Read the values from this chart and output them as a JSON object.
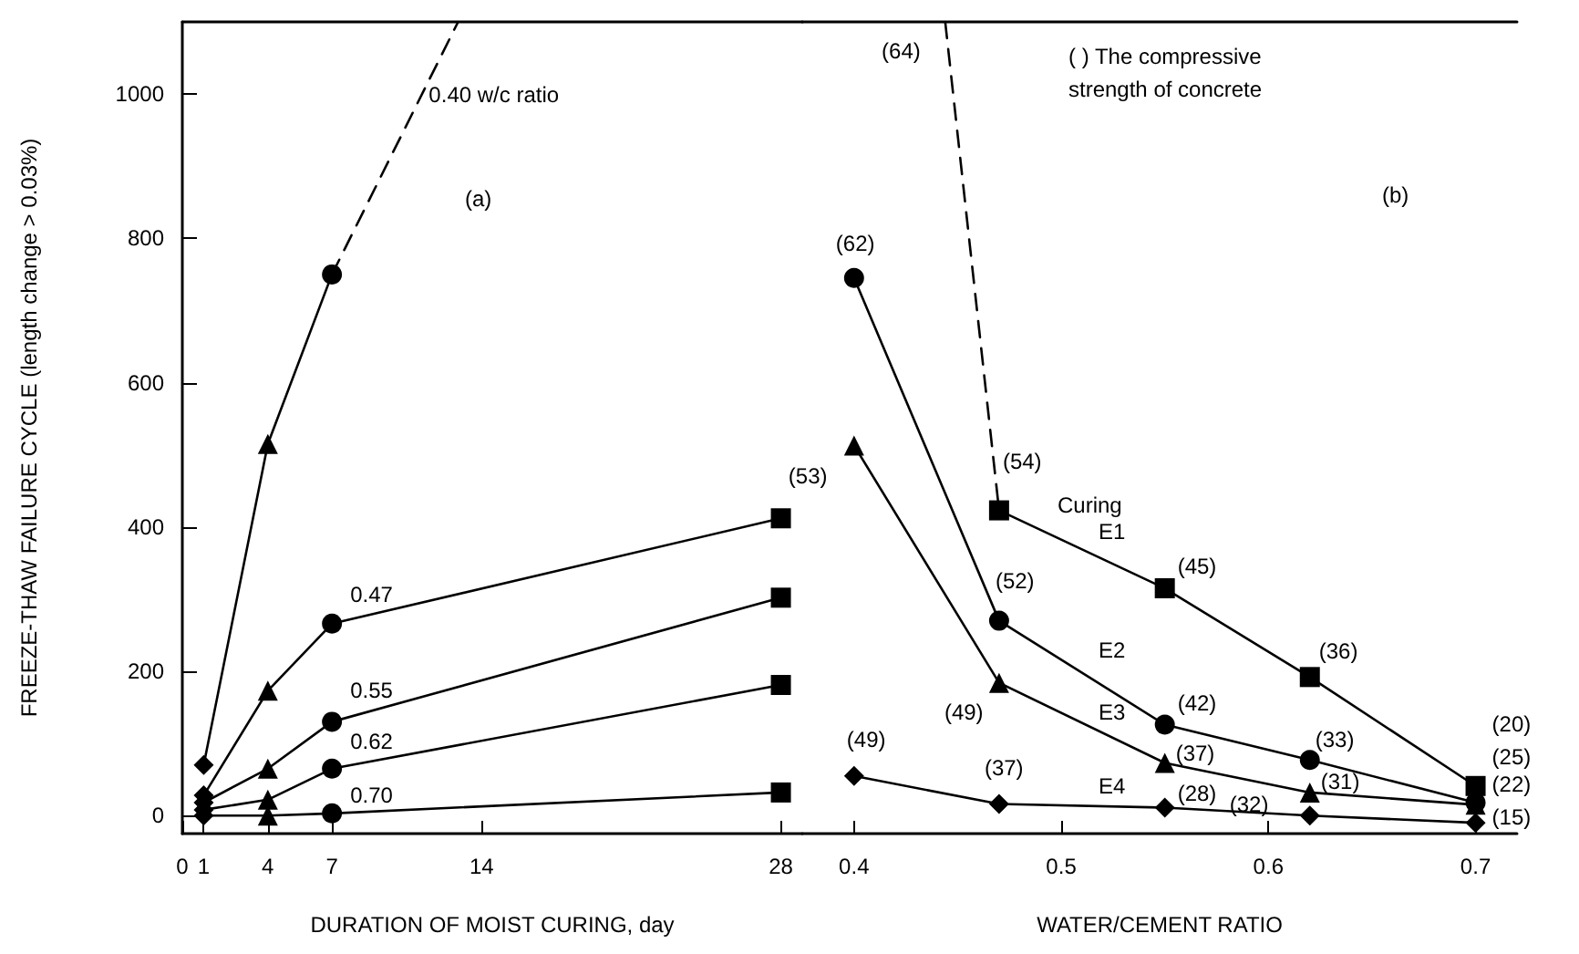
{
  "chart_data": [
    {
      "type": "line",
      "xlabel": "DURATION OF MOIST CURING, day",
      "ylabel": "FREEZE-THAW FAILURE CYCLE (length change > 0.03%)",
      "xlim": [
        0,
        29
      ],
      "xticks": [
        0,
        1,
        4,
        7,
        14,
        28
      ],
      "ylim": [
        -25,
        1100
      ],
      "yticks": [
        0,
        200,
        400,
        600,
        800,
        1000
      ],
      "grid": false,
      "legend": false,
      "annotations": [
        "(a)"
      ],
      "series": [
        {
          "color": "#000000",
          "x": [
            1,
            4,
            7
          ],
          "values": [
            70,
            515,
            750
          ],
          "marker": [
            "diamond",
            "triangle",
            "circle"
          ],
          "line_style": "solid"
        },
        {
          "name": "0.40 w/c ratio",
          "color": "#000000",
          "x": [
            7,
            12.9
          ],
          "values": [
            750,
            1100
          ],
          "line_style": "dashed"
        },
        {
          "name": "0.47",
          "color": "#000000",
          "x": [
            1,
            4,
            7,
            28
          ],
          "values": [
            28,
            173,
            266,
            412
          ],
          "marker": [
            "diamond",
            "triangle",
            "circle",
            "square"
          ],
          "line_style": "solid"
        },
        {
          "name": "0.55",
          "color": "#000000",
          "x": [
            1,
            4,
            7,
            28
          ],
          "values": [
            18,
            65,
            130,
            302
          ],
          "marker": [
            "diamond",
            "triangle",
            "circle",
            "square"
          ],
          "line_style": "solid"
        },
        {
          "name": "0.62",
          "color": "#000000",
          "x": [
            1,
            4,
            7,
            28
          ],
          "values": [
            8,
            22,
            65,
            181
          ],
          "marker": [
            "diamond",
            "triangle",
            "circle",
            "square"
          ],
          "line_style": "solid"
        },
        {
          "name": "0.70",
          "color": "#000000",
          "x": [
            1,
            4,
            7,
            28
          ],
          "values": [
            0,
            0,
            3,
            32
          ],
          "marker": [
            "diamond",
            "triangle",
            "circle",
            "square"
          ],
          "line_style": "solid"
        }
      ]
    },
    {
      "type": "line",
      "xlabel": "WATER/CEMENT RATIO",
      "xlim": [
        0.375,
        0.72
      ],
      "xticks": [
        0.4,
        0.5,
        0.6,
        0.7
      ],
      "ylim": [
        -25,
        1100
      ],
      "tick_labels": "x",
      "grid": false,
      "legend": false,
      "annotations": [
        "(b)",
        "( ) The compressive strength of concrete",
        "Curing",
        {
          "text": "(64)",
          "x": 0.445,
          "y": 1060
        },
        {
          "text": "(54)",
          "x": 0.47,
          "y": 423
        },
        {
          "text": "(45)",
          "x": 0.55,
          "y": 315
        },
        {
          "text": "(36)",
          "x": 0.62,
          "y": 192
        },
        {
          "text": "(20)",
          "x": 0.7,
          "y": 41
        },
        {
          "text": "(62)",
          "x": 0.4,
          "y": 745
        },
        {
          "text": "(52)",
          "x": 0.47,
          "y": 270
        },
        {
          "text": "(42)",
          "x": 0.55,
          "y": 126
        },
        {
          "text": "(33)",
          "x": 0.62,
          "y": 77
        },
        {
          "text": "(25)",
          "x": 0.7,
          "y": 18
        },
        {
          "text": "(53)",
          "x": 0.4,
          "y": 513
        },
        {
          "text": "(49)",
          "x": 0.47,
          "y": 184
        },
        {
          "text": "(37)",
          "x": 0.55,
          "y": 73
        },
        {
          "text": "(31)",
          "x": 0.62,
          "y": 32
        },
        {
          "text": "(22)",
          "x": 0.7,
          "y": 15
        },
        {
          "text": "(49)",
          "x": 0.4,
          "y": 55
        },
        {
          "text": "(37)",
          "x": 0.47,
          "y": 16
        },
        {
          "text": "(28)",
          "x": 0.55,
          "y": 11
        },
        {
          "text": "(32)",
          "x": 0.62,
          "y": 0
        },
        {
          "text": "(15)",
          "x": 0.7,
          "y": -10
        }
      ],
      "series": [
        {
          "color": "#000000",
          "x": [
            0.444,
            0.47
          ],
          "values": [
            1100,
            423
          ],
          "line_style": "dashed"
        },
        {
          "name": "E1",
          "color": "#000000",
          "x": [
            0.47,
            0.55,
            0.62,
            0.7
          ],
          "values": [
            423,
            315,
            192,
            41
          ],
          "marker": "square",
          "line_style": "solid"
        },
        {
          "name": "E2",
          "color": "#000000",
          "x": [
            0.4,
            0.47,
            0.55,
            0.62,
            0.7
          ],
          "values": [
            745,
            270,
            126,
            77,
            18
          ],
          "marker": "circle",
          "line_style": "solid"
        },
        {
          "name": "E3",
          "color": "#000000",
          "x": [
            0.4,
            0.47,
            0.55,
            0.62,
            0.7
          ],
          "values": [
            513,
            184,
            73,
            32,
            15
          ],
          "marker": "triangle",
          "line_style": "solid"
        },
        {
          "name": "E4",
          "color": "#000000",
          "x": [
            0.4,
            0.47,
            0.55,
            0.62,
            0.7
          ],
          "values": [
            55,
            16,
            11,
            0,
            -10
          ],
          "marker": "diamond",
          "line_style": "solid"
        }
      ]
    }
  ]
}
